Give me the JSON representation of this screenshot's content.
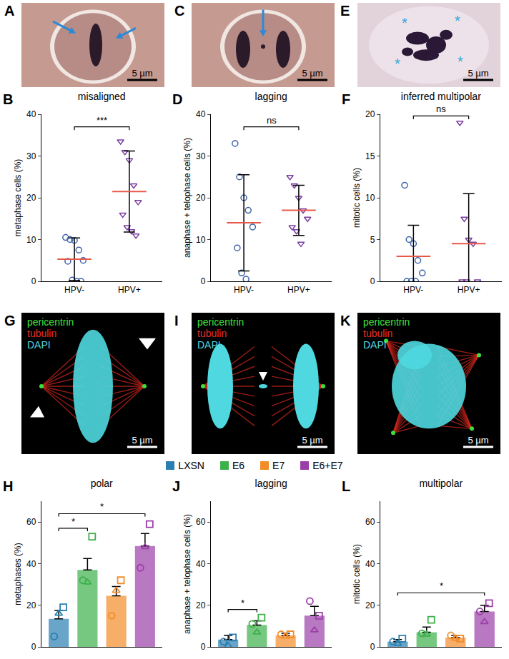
{
  "chart_data": [
    {
      "panel": "B",
      "type": "scatter",
      "title": "misaligned",
      "y_label": "metaphase cells (%)",
      "ylim": [
        0,
        40
      ],
      "yticks": [
        0,
        10,
        20,
        30,
        40
      ],
      "grid": false,
      "series": [
        {
          "name": "HPV-",
          "color": "#3b63a8",
          "marker": "circle",
          "values": [
            10.5,
            10,
            9.8,
            7.5,
            5,
            4.8,
            0.3,
            0,
            0
          ],
          "mean": 5.3,
          "sd": 5.1
        },
        {
          "name": "HPV+",
          "color": "#7b3fa0",
          "marker": "triangle-down",
          "values": [
            33.5,
            31,
            29,
            23,
            19,
            16,
            13,
            12,
            11
          ],
          "mean": 21.5,
          "sd": 9.7
        }
      ],
      "annotations": [
        {
          "text": "***",
          "from": "HPV-",
          "to": "HPV+",
          "y": 37
        }
      ]
    },
    {
      "panel": "D",
      "type": "scatter",
      "title": "lagging",
      "y_label": "anaphase + telophase cells (%)",
      "ylim": [
        0,
        40
      ],
      "yticks": [
        0,
        10,
        20,
        30,
        40
      ],
      "grid": false,
      "series": [
        {
          "name": "HPV-",
          "color": "#3b63a8",
          "marker": "circle",
          "values": [
            33,
            25,
            20,
            17,
            13,
            8,
            2,
            0.5
          ],
          "mean": 14,
          "sd": 11.5
        },
        {
          "name": "HPV+",
          "color": "#7b3fa0",
          "marker": "triangle-down",
          "values": [
            25,
            23,
            20,
            17,
            15,
            13,
            12,
            9
          ],
          "mean": 17,
          "sd": 6
        }
      ],
      "annotations": [
        {
          "text": "ns",
          "from": "HPV-",
          "to": "HPV+",
          "y": 37
        }
      ]
    },
    {
      "panel": "F",
      "type": "scatter",
      "title": "inferred multipolar",
      "y_label": "mitotic cells (%)",
      "ylim": [
        0,
        20
      ],
      "yticks": [
        0,
        5,
        10,
        15,
        20
      ],
      "grid": false,
      "series": [
        {
          "name": "HPV-",
          "color": "#3b63a8",
          "marker": "circle",
          "values": [
            11.5,
            5,
            4.5,
            2.5,
            1,
            0,
            0,
            0
          ],
          "mean": 3,
          "sd": 3.7
        },
        {
          "name": "HPV+",
          "color": "#7b3fa0",
          "marker": "triangle-down",
          "values": [
            19,
            7.5,
            5,
            4.5,
            0,
            0,
            0
          ],
          "mean": 4.5,
          "sd": 6
        }
      ],
      "annotations": [
        {
          "text": "ns",
          "from": "HPV-",
          "to": "HPV+",
          "y": 19.8
        }
      ]
    },
    {
      "panel": "H",
      "type": "bar",
      "title": "polar",
      "y_label": "metaphases (%)",
      "ylim": [
        0,
        70
      ],
      "yticks": [
        0,
        20,
        40,
        60
      ],
      "grid": false,
      "tick_labels": "y",
      "categories": [
        "LXSN",
        "E6",
        "E7",
        "E6+E7"
      ],
      "colors": [
        "#2a7fb0",
        "#3cb04a",
        "#f28c28",
        "#9b3fa8"
      ],
      "values": [
        13.5,
        37,
        24.5,
        48.5
      ],
      "error": [
        4,
        5.5,
        4.5,
        6
      ],
      "replicates": [
        {
          "marker": "square",
          "values": [
            19,
            53,
            32,
            59
          ]
        },
        {
          "marker": "circle",
          "values": [
            5,
            32,
            15,
            38
          ]
        },
        {
          "marker": "triangle-up",
          "values": [
            16,
            31,
            27,
            48
          ]
        }
      ],
      "annotations": [
        {
          "text": "*",
          "from": "LXSN",
          "to": "E6",
          "y": 57
        },
        {
          "text": "*",
          "from": "LXSN",
          "to": "E6+E7",
          "y": 64
        }
      ]
    },
    {
      "panel": "J",
      "type": "bar",
      "title": "lagging",
      "y_label": "anaphase + telophase cells (%)",
      "ylim": [
        0,
        70
      ],
      "yticks": [
        0,
        20,
        40,
        60
      ],
      "grid": false,
      "tick_labels": "y",
      "categories": [
        "LXSN",
        "E6",
        "E7",
        "E6+E7"
      ],
      "colors": [
        "#2a7fb0",
        "#3cb04a",
        "#f28c28",
        "#9b3fa8"
      ],
      "values": [
        3.5,
        10.5,
        5.5,
        15
      ],
      "error": [
        2,
        2,
        1,
        4.5
      ],
      "replicates": [
        {
          "marker": "square",
          "values": [
            4.5,
            14,
            6,
            15
          ]
        },
        {
          "marker": "circle",
          "values": [
            2.5,
            11,
            6,
            22
          ]
        },
        {
          "marker": "triangle-up",
          "values": [
            0.5,
            7,
            5,
            8
          ]
        }
      ],
      "annotations": [
        {
          "text": "*",
          "from": "LXSN",
          "to": "E6",
          "y": 18
        }
      ]
    },
    {
      "panel": "L",
      "type": "bar",
      "title": "multipolar",
      "y_label": "mitotic cells (%)",
      "ylim": [
        0,
        70
      ],
      "yticks": [
        0,
        20,
        40,
        60
      ],
      "grid": false,
      "tick_labels": "y",
      "categories": [
        "LXSN",
        "E6",
        "E7",
        "E6+E7"
      ],
      "colors": [
        "#2a7fb0",
        "#3cb04a",
        "#f28c28",
        "#9b3fa8"
      ],
      "values": [
        2.5,
        7,
        4.5,
        17
      ],
      "error": [
        1,
        2.5,
        1,
        3
      ],
      "replicates": [
        {
          "marker": "square",
          "values": [
            4,
            13,
            4,
            21
          ]
        },
        {
          "marker": "circle",
          "values": [
            2.5,
            6.5,
            5.5,
            17
          ]
        },
        {
          "marker": "triangle-up",
          "values": [
            1.5,
            6,
            4,
            12
          ]
        }
      ],
      "annotations": [
        {
          "text": "*",
          "from": "LXSN",
          "to": "E6+E7",
          "y": 26
        }
      ]
    }
  ],
  "images": [
    {
      "panel": "A",
      "style": "brightfield",
      "scale_bar": "5 µm"
    },
    {
      "panel": "C",
      "style": "brightfield",
      "scale_bar": "5 µm"
    },
    {
      "panel": "E",
      "style": "brightfield",
      "scale_bar": "5 µm",
      "marks": [
        "*",
        "*",
        "*",
        "*"
      ]
    },
    {
      "panel": "G",
      "style": "fluorescence",
      "scale_bar": "5 µm",
      "labels": [
        {
          "text": "pericentrin",
          "color": "#3ee03e"
        },
        {
          "text": "tubulin",
          "color": "#e0302a"
        },
        {
          "text": "DAPI",
          "color": "#4fd8e0"
        }
      ]
    },
    {
      "panel": "I",
      "style": "fluorescence",
      "scale_bar": "5 µm",
      "labels": [
        {
          "text": "pericentrin",
          "color": "#3ee03e"
        },
        {
          "text": "tubulin",
          "color": "#e0302a"
        },
        {
          "text": "DAPI",
          "color": "#4fd8e0"
        }
      ]
    },
    {
      "panel": "K",
      "style": "fluorescence",
      "scale_bar": "5 µm",
      "labels": [
        {
          "text": "pericentrin",
          "color": "#3ee03e"
        },
        {
          "text": "tubulin",
          "color": "#e0302a"
        },
        {
          "text": "DAPI",
          "color": "#4fd8e0"
        }
      ]
    }
  ]
}
